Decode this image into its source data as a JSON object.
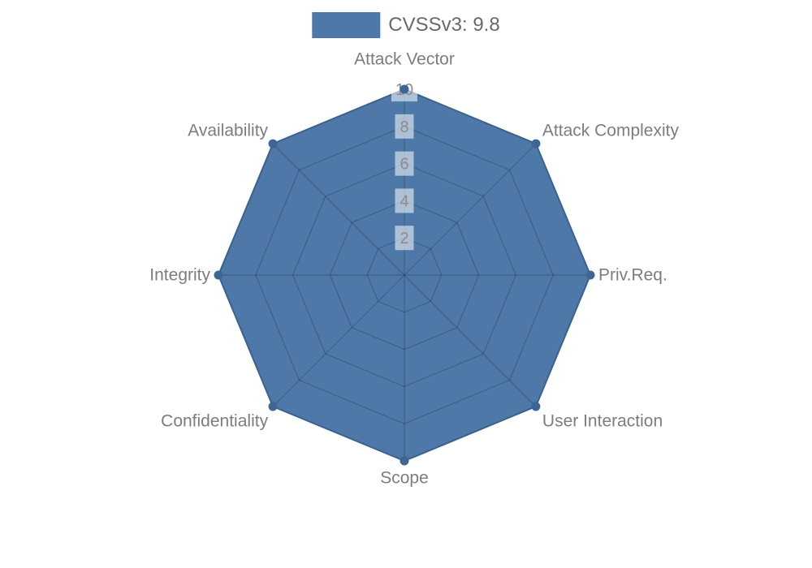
{
  "legend": {
    "label": "CVSSv3: 9.8"
  },
  "chart_data": {
    "type": "radar",
    "title": "CVSSv3: 9.8",
    "categories": [
      "Attack Vector",
      "Attack Complexity",
      "Priv.Req.",
      "User Interaction",
      "Scope",
      "Confidentiality",
      "Integrity",
      "Availability"
    ],
    "series": [
      {
        "name": "CVSSv3: 9.8",
        "values": [
          10,
          10,
          10,
          10,
          10,
          10,
          10,
          10
        ]
      }
    ],
    "radial_ticks": [
      2,
      4,
      6,
      8,
      10
    ],
    "range": [
      0,
      10
    ],
    "grid_shape": "polygon",
    "grid_on": true,
    "legend_position": "top-center",
    "colors": {
      "fill": "#4d78a7",
      "outline": "#3a628f",
      "marker": "#3d6695",
      "grid": "rgba(0,0,0,0.2)",
      "axis_label": "#7d7d7d",
      "tick_label": "#8c8c8c",
      "tick_background": "rgba(255,255,255,0.55)",
      "legend_text": "#696969"
    }
  }
}
